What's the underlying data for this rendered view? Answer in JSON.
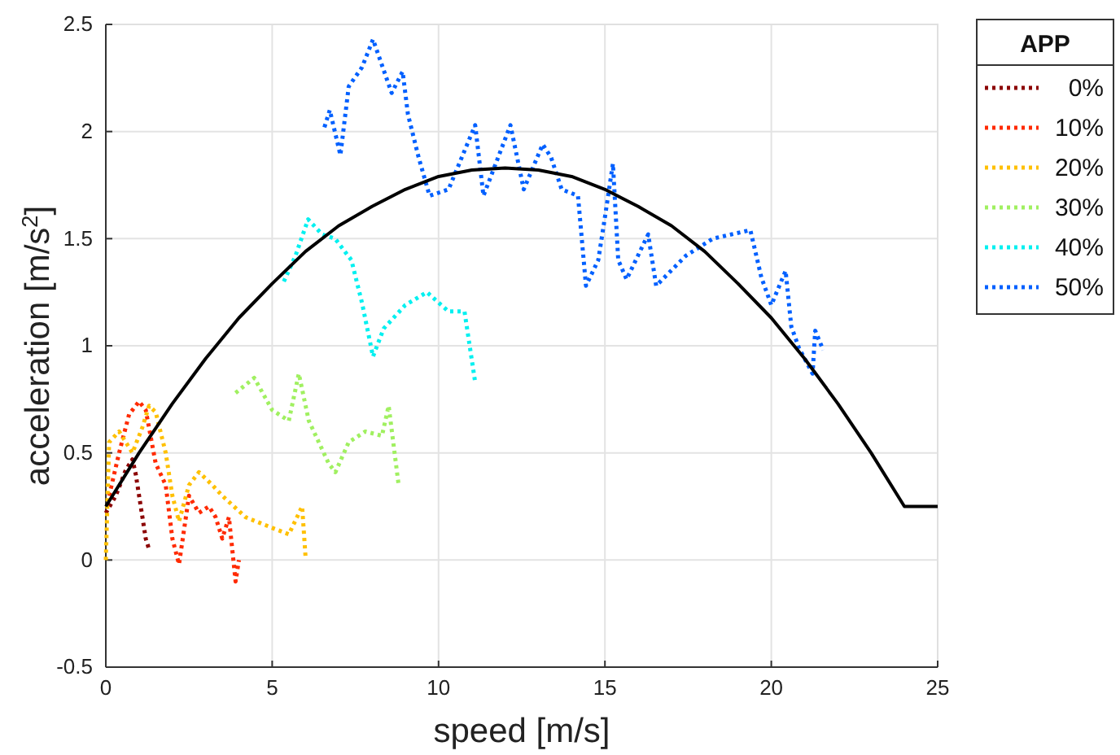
{
  "chart_data": {
    "type": "line",
    "xlabel": "speed [m/s]",
    "ylabel": "acceleration [m/s$^{2}$]",
    "legend_title": "APP",
    "xlim": [
      0,
      25
    ],
    "ylim": [
      -0.5,
      2.5
    ],
    "xticks": [
      0,
      5,
      10,
      15,
      20,
      25
    ],
    "yticks": [
      -0.5,
      0,
      0.5,
      1,
      1.5,
      2,
      2.5
    ],
    "grid": true,
    "legend": "right",
    "line_style": "dotted",
    "series": [
      {
        "name": "0%",
        "color": "#8b0000",
        "x": [
          0,
          0.3,
          0.6,
          0.8,
          0.9,
          1.0,
          1.1,
          1.2,
          1.3
        ],
        "values": [
          0.22,
          0.3,
          0.42,
          0.47,
          0.4,
          0.3,
          0.2,
          0.1,
          0.05
        ]
      },
      {
        "name": "10%",
        "color": "#ff2a00",
        "x": [
          0.1,
          0.4,
          0.7,
          1.0,
          1.2,
          1.5,
          1.8,
          2.0,
          2.2,
          2.5,
          2.8,
          3.1,
          3.3,
          3.5,
          3.7,
          3.9,
          4.0
        ],
        "values": [
          0.3,
          0.5,
          0.68,
          0.74,
          0.7,
          0.45,
          0.35,
          0.1,
          -0.02,
          0.3,
          0.22,
          0.25,
          0.2,
          0.1,
          0.2,
          -0.1,
          0
        ]
      },
      {
        "name": "20%",
        "color": "#ffc000",
        "x": [
          0,
          0.1,
          0.4,
          0.8,
          1.1,
          1.3,
          1.5,
          1.8,
          2.0,
          2.2,
          2.5,
          2.8,
          3.2,
          3.5,
          4.2,
          5.0,
          5.5,
          5.9,
          6.0
        ],
        "values": [
          0,
          0.55,
          0.6,
          0.5,
          0.62,
          0.72,
          0.69,
          0.5,
          0.3,
          0.18,
          0.35,
          0.41,
          0.35,
          0.3,
          0.2,
          0.15,
          0.12,
          0.25,
          0.02
        ]
      },
      {
        "name": "30%",
        "color": "#a0f060",
        "x": [
          3.9,
          4.46,
          5.0,
          5.5,
          5.8,
          6.1,
          6.4,
          6.7,
          6.9,
          7.3,
          7.8,
          8.3,
          8.5,
          8.8
        ],
        "values": [
          0.78,
          0.85,
          0.7,
          0.65,
          0.87,
          0.65,
          0.55,
          0.45,
          0.41,
          0.55,
          0.6,
          0.58,
          0.72,
          0.35
        ]
      },
      {
        "name": "40%",
        "color": "#00f0f0",
        "x": [
          5.35,
          5.7,
          6.08,
          6.5,
          6.89,
          7.38,
          7.7,
          8.03,
          8.35,
          9.0,
          9.65,
          10.3,
          10.78,
          11.1
        ],
        "values": [
          1.3,
          1.42,
          1.59,
          1.52,
          1.5,
          1.4,
          1.2,
          0.95,
          1.08,
          1.19,
          1.25,
          1.16,
          1.16,
          0.83
        ]
      },
      {
        "name": "50%",
        "color": "#0060ff",
        "x": [
          6.57,
          6.73,
          7.05,
          7.3,
          7.7,
          8.03,
          8.59,
          8.92,
          9.08,
          9.4,
          9.73,
          10.3,
          11.1,
          11.35,
          12.16,
          12.56,
          13.13,
          13.38,
          13.7,
          14.19,
          14.43,
          14.8,
          15.0,
          15.24,
          15.4,
          15.65,
          16.3,
          16.54,
          17.43,
          18.24,
          19.37,
          19.7,
          20.0,
          20.43,
          20.6,
          20.83,
          21.24,
          21.32,
          21.56
        ],
        "values": [
          2.02,
          2.1,
          1.89,
          2.21,
          2.3,
          2.43,
          2.18,
          2.28,
          2.08,
          1.88,
          1.7,
          1.73,
          2.03,
          1.7,
          2.03,
          1.73,
          1.94,
          1.88,
          1.73,
          1.7,
          1.28,
          1.4,
          1.6,
          1.85,
          1.4,
          1.31,
          1.52,
          1.28,
          1.42,
          1.5,
          1.54,
          1.32,
          1.19,
          1.35,
          1.09,
          0.99,
          0.87,
          1.07,
          0.98
        ]
      },
      {
        "color": "#000000",
        "line_style": "solid",
        "x": [
          0,
          1,
          2,
          3,
          4,
          5,
          6,
          7,
          8,
          9,
          10,
          11,
          12,
          13,
          14,
          15,
          16,
          17,
          18,
          19,
          20,
          21,
          22,
          23,
          24,
          25
        ],
        "values": [
          0.25,
          0.5,
          0.73,
          0.94,
          1.13,
          1.29,
          1.44,
          1.56,
          1.65,
          1.73,
          1.79,
          1.82,
          1.83,
          1.82,
          1.79,
          1.73,
          1.65,
          1.56,
          1.44,
          1.29,
          1.13,
          0.94,
          0.73,
          0.5,
          0.25,
          0.25
        ]
      }
    ]
  }
}
